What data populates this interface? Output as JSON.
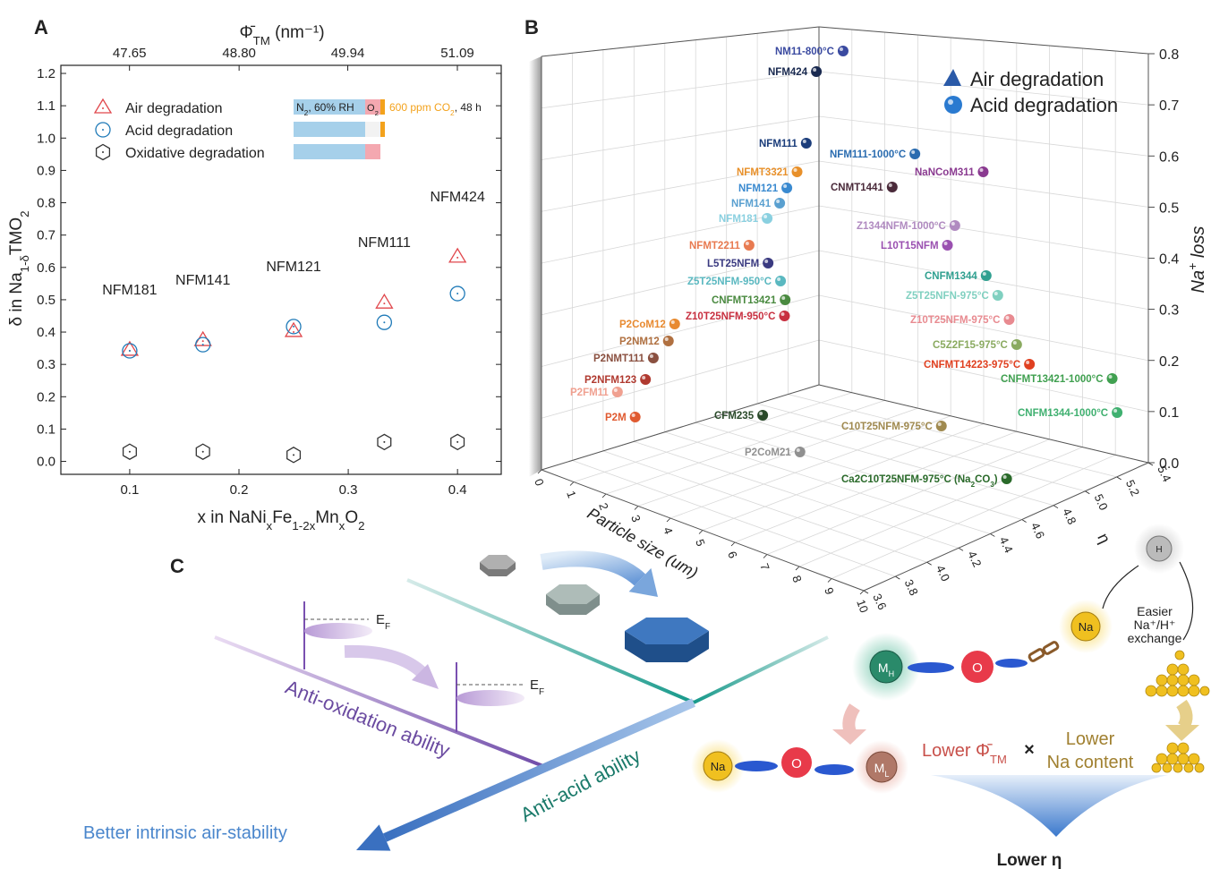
{
  "chart_data": [
    {
      "type": "scatter",
      "panel_label": "A",
      "x": [
        0.1,
        0.167,
        0.25,
        0.333,
        0.4
      ],
      "point_labels": [
        "NFM181",
        "NFM141",
        "NFM121",
        "NFM111",
        "NFM424"
      ],
      "series": [
        {
          "name": "Air degradation",
          "color": "#e0474c",
          "marker": "triangle",
          "values": [
            0.345,
            0.375,
            0.403,
            0.491,
            0.633
          ]
        },
        {
          "name": "Acid degradation",
          "color": "#1f7ab8",
          "marker": "circle",
          "values": [
            0.342,
            0.361,
            0.417,
            0.43,
            0.519
          ]
        },
        {
          "name": "Oxidative degradation",
          "color": "#333333",
          "marker": "hexagon",
          "values": [
            0.03,
            0.03,
            0.02,
            0.06,
            0.06
          ]
        }
      ],
      "xlim": [
        0.037,
        0.44
      ],
      "xticks": [
        0.1,
        0.2,
        0.3,
        0.4
      ],
      "ylim": [
        -0.04,
        1.225
      ],
      "yticks": [
        {
          "value": 0,
          "label": "0.0"
        },
        0.1,
        0.2,
        0.3,
        0.4,
        0.5,
        0.6,
        0.7,
        0.8,
        0.9,
        {
          "value": 1,
          "label": "1.0"
        },
        1.1,
        1.2
      ],
      "x_label": [
        "x in NaNi",
        "x",
        "Fe",
        "1-2x",
        "Mn",
        "x",
        "O",
        "2"
      ],
      "y_label": [
        "δ in Na",
        "1-δ",
        "TMO",
        "2"
      ],
      "x2lim": [
        46.93,
        51.55
      ],
      "x2ticks": [
        47.65,
        {
          "value": 48.8,
          "label": "48.80"
        },
        49.94,
        51.09
      ],
      "x2_label": [
        "Φ̄",
        "TM",
        " (nm⁻¹)"
      ],
      "inset_labels": {
        "humid": [
          "N",
          "2",
          ", 60% RH"
        ],
        "oxygen": [
          "O",
          "2"
        ],
        "co2": [
          "600 ppm CO",
          "2"
        ],
        "time": ", 48 h"
      },
      "inset_colors": {
        "humid": "#a6d0ea",
        "oxygen": "#f4a8b0",
        "co2": "#f3a21c"
      }
    },
    {
      "type": "scatter3d",
      "panel_label": "B",
      "series": [
        {
          "name": "Air degradation",
          "color": "#2a5aa8",
          "marker": "triangle"
        },
        {
          "name": "Acid degradation",
          "color": "#2a7ad0",
          "marker": "sphere"
        }
      ],
      "point_labels": [
        {
          "label": "NM11-800°C",
          "color": "#3a4aa0"
        },
        {
          "label": "NFM424",
          "color": "#1a2a50"
        },
        {
          "label": "NFM111",
          "color": "#1a3c7a"
        },
        {
          "label": "NFM111-1000°C",
          "color": "#2a6cb0"
        },
        {
          "label": "NaNCoM311",
          "color": "#8a3a90"
        },
        {
          "label": "NFMT3321",
          "color": "#e8902a"
        },
        {
          "label": "NFM121",
          "color": "#3a8ad0"
        },
        {
          "label": "CNMT1441",
          "color": "#4a2a3a"
        },
        {
          "label": "NFM141",
          "color": "#5aa0d0"
        },
        {
          "label": "NFM181",
          "color": "#8ad0e0"
        },
        {
          "label": "Z1344NFM-1000°C",
          "color": "#b08ac0"
        },
        {
          "label": "NFMT2211",
          "color": "#e87a50"
        },
        {
          "label": "L10T15NFM",
          "color": "#9a50b0"
        },
        {
          "label": "L5T25NFM",
          "color": "#3a3a80"
        },
        {
          "label": "CNFM1344",
          "color": "#30a090"
        },
        {
          "label": "Z5T25NFM-950°C",
          "color": "#5ab8c0"
        },
        {
          "label": "Z5T25NFN-975°C",
          "color": "#80d0c0"
        },
        {
          "label": "CNFMT13421",
          "color": "#4a8a40"
        },
        {
          "label": "P2CoM12",
          "color": "#e88a30"
        },
        {
          "label": "Z10T25NFM-950°C",
          "color": "#c83040"
        },
        {
          "label": "Z10T25NFM-975°C",
          "color": "#e88a90"
        },
        {
          "label": "P2NM12",
          "color": "#b07040"
        },
        {
          "label": "C5Z2F15-975°C",
          "color": "#8aaa60"
        },
        {
          "label": "P2NMT111",
          "color": "#8a5040"
        },
        {
          "label": "CNFMT14223-975°C",
          "color": "#e04020"
        },
        {
          "label": "P2NFM123",
          "color": "#b03a30"
        },
        {
          "label": "CNFMT13421-1000°C",
          "color": "#40a050"
        },
        {
          "label": "P2FM11",
          "color": "#f0a090"
        },
        {
          "label": "CNFM1344-1000°C",
          "color": "#40b070"
        },
        {
          "label": "P2M",
          "color": "#e05a30"
        },
        {
          "label": "CFM235",
          "color": "#2a4a2a"
        },
        {
          "label": "C10T25NFM-975°C",
          "color": "#a08a50"
        },
        {
          "label": "P2CoM21",
          "color": "#909090"
        },
        {
          "label": [
            "Ca2C10T25NFM-975°C (Na",
            "2",
            "CO",
            "3",
            ")"
          ],
          "color": "#2a6a2a"
        }
      ],
      "xlim": [
        0,
        10
      ],
      "xticks": [
        0,
        1,
        2,
        3,
        4,
        5,
        6,
        7,
        8,
        9,
        10
      ],
      "x_label": "Particle size (um)",
      "ylim": [
        3.6,
        5.4
      ],
      "yticks": [
        3.6,
        3.8,
        {
          "value": 4,
          "label": "4.0"
        },
        4.2,
        4.4,
        4.6,
        4.8,
        {
          "value": 5,
          "label": "5.0"
        },
        5.2,
        5.4
      ],
      "y_label": "η",
      "zlim": [
        0,
        0.8
      ],
      "zticks": [
        {
          "value": 0,
          "label": "0.0"
        },
        0.1,
        0.2,
        0.3,
        0.4,
        0.5,
        0.6,
        0.7,
        0.8
      ],
      "z_label": [
        "Na",
        "+",
        " loss"
      ]
    }
  ],
  "diagram": {
    "panel_label": "C",
    "anti_oxidation": "Anti-oxidation ability",
    "anti_acid": "Anti-acid ability",
    "air_stability": "Better intrinsic air-stability",
    "fermi_levels": [
      [
        "E",
        "F"
      ],
      [
        "E",
        "F"
      ]
    ],
    "atoms": {
      "m_high": [
        "M",
        "H"
      ],
      "oxygen_1": "O",
      "sodium_1": "Na",
      "hydrogen": "H",
      "sodium_2": "Na",
      "oxygen_2": "O",
      "m_low": [
        "M",
        "L"
      ]
    },
    "exchange": [
      "Easier",
      "Na⁺/H⁺",
      "exchange"
    ],
    "lower_phi": [
      "Lower Φ̄",
      "TM"
    ],
    "times": "×",
    "lower_na": [
      "Lower",
      "Na content"
    ],
    "result": "Lower η"
  }
}
